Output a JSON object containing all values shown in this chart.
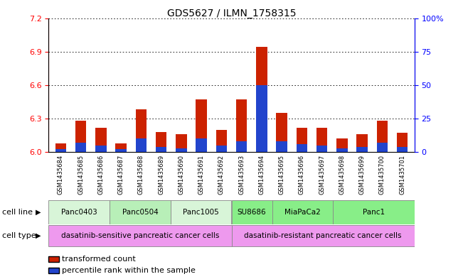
{
  "title": "GDS5627 / ILMN_1758315",
  "samples": [
    "GSM1435684",
    "GSM1435685",
    "GSM1435686",
    "GSM1435687",
    "GSM1435688",
    "GSM1435689",
    "GSM1435690",
    "GSM1435691",
    "GSM1435692",
    "GSM1435693",
    "GSM1435694",
    "GSM1435695",
    "GSM1435696",
    "GSM1435697",
    "GSM1435698",
    "GSM1435699",
    "GSM1435700",
    "GSM1435701"
  ],
  "transformed_count": [
    6.08,
    6.28,
    6.22,
    6.08,
    6.38,
    6.18,
    6.16,
    6.47,
    6.2,
    6.47,
    6.94,
    6.35,
    6.22,
    6.22,
    6.12,
    6.16,
    6.28,
    6.17
  ],
  "percentile_rank": [
    2,
    7,
    5,
    2,
    10,
    4,
    3,
    10,
    5,
    8,
    50,
    8,
    6,
    5,
    3,
    4,
    7,
    4
  ],
  "cell_lines": [
    {
      "label": "Panc0403",
      "start": 0,
      "end": 3
    },
    {
      "label": "Panc0504",
      "start": 3,
      "end": 6
    },
    {
      "label": "Panc1005",
      "start": 6,
      "end": 9
    },
    {
      "label": "SU8686",
      "start": 9,
      "end": 11
    },
    {
      "label": "MiaPaCa2",
      "start": 11,
      "end": 14
    },
    {
      "label": "Panc1",
      "start": 14,
      "end": 18
    }
  ],
  "cell_line_colors": [
    "#d8f5d8",
    "#b8efb8",
    "#d8f5d8",
    "#88ee88",
    "#88ee88",
    "#88ee88"
  ],
  "cell_types": [
    {
      "label": "dasatinib-sensitive pancreatic cancer cells",
      "start": 0,
      "end": 9
    },
    {
      "label": "dasatinib-resistant pancreatic cancer cells",
      "start": 9,
      "end": 18
    }
  ],
  "cell_type_color": "#ee99ee",
  "ylim_left": [
    6.0,
    7.2
  ],
  "ylim_right": [
    0,
    100
  ],
  "yticks_left": [
    6.0,
    6.3,
    6.6,
    6.9,
    7.2
  ],
  "yticks_right": [
    0,
    25,
    50,
    75,
    100
  ],
  "bar_color_red": "#cc2200",
  "bar_color_blue": "#2244cc",
  "legend_items": [
    {
      "color": "#cc2200",
      "label": "transformed count"
    },
    {
      "color": "#2244cc",
      "label": "percentile rank within the sample"
    }
  ]
}
